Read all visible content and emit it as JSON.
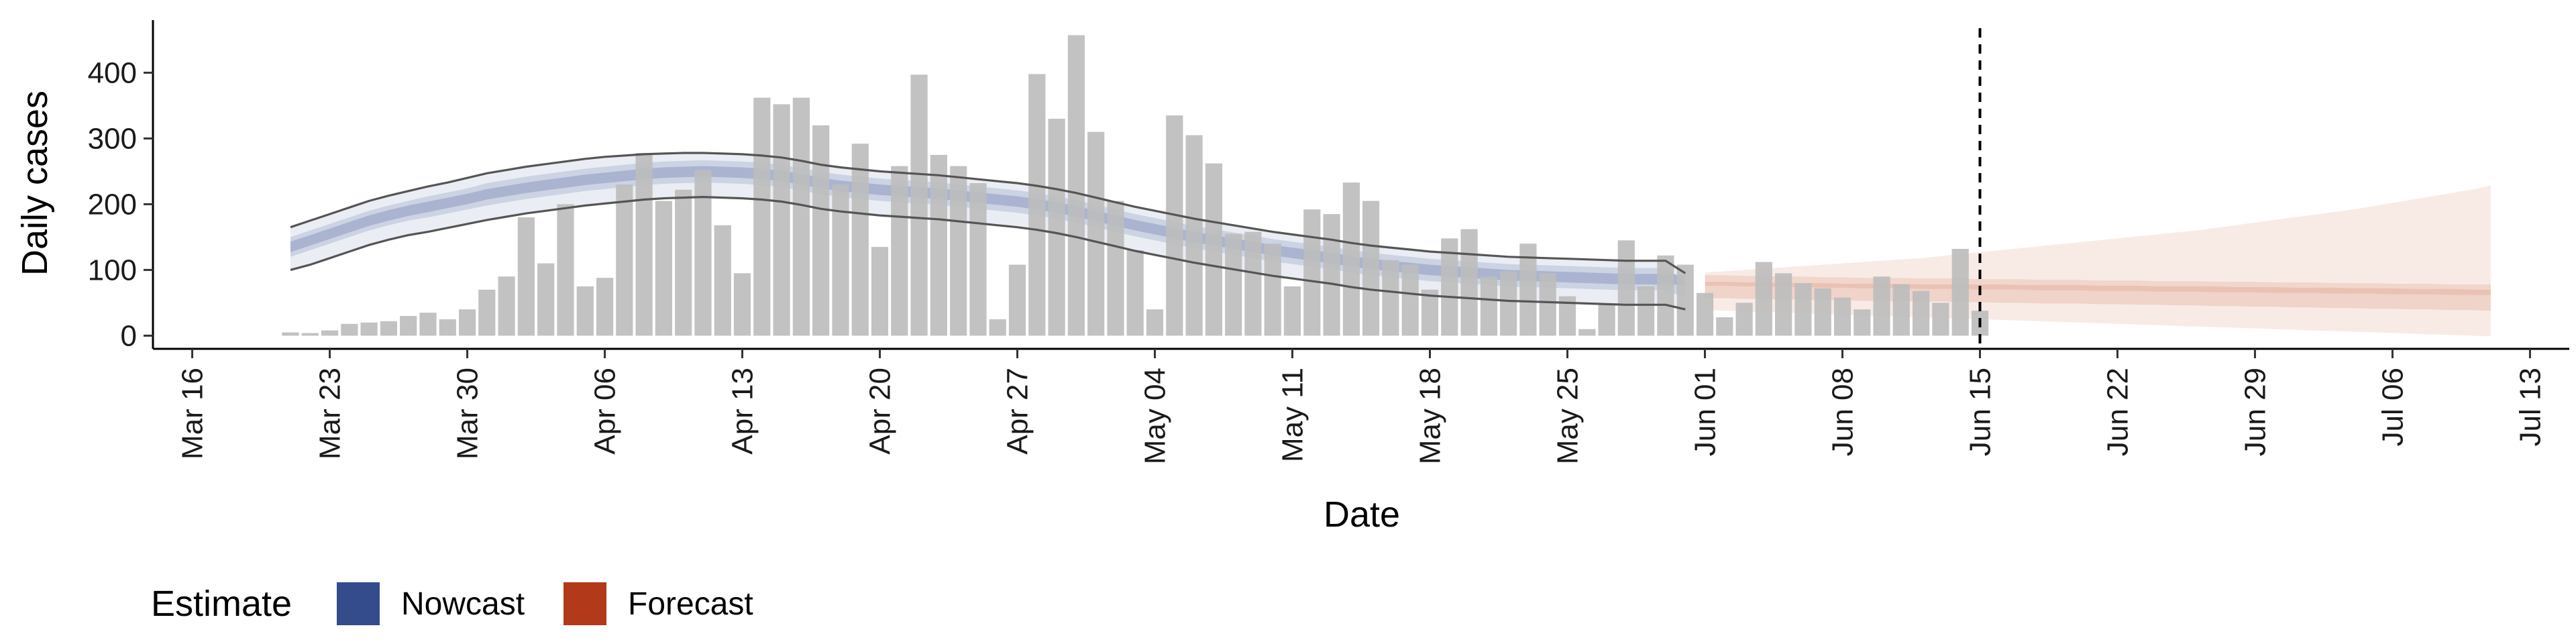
{
  "chart_data": {
    "type": "bar",
    "xlabel": "Date",
    "ylabel": "Daily cases",
    "x_start_date": "2020-03-14",
    "x_end_date": "2020-07-15",
    "ylim": [
      -20,
      480
    ],
    "y_ticks": [
      0,
      100,
      200,
      300,
      400
    ],
    "x_ticks": [
      "Mar 16",
      "Mar 23",
      "Mar 30",
      "Apr 06",
      "Apr 13",
      "Apr 20",
      "Apr 27",
      "May 04",
      "May 11",
      "May 18",
      "May 25",
      "Jun 01",
      "Jun 08",
      "Jun 15",
      "Jun 22",
      "Jun 29",
      "Jul 06",
      "Jul 13"
    ],
    "x_tick_dates": [
      "2020-03-16",
      "2020-03-23",
      "2020-03-30",
      "2020-04-06",
      "2020-04-13",
      "2020-04-20",
      "2020-04-27",
      "2020-05-04",
      "2020-05-11",
      "2020-05-18",
      "2020-05-25",
      "2020-06-01",
      "2020-06-08",
      "2020-06-15",
      "2020-06-22",
      "2020-06-29",
      "2020-07-06",
      "2020-07-13"
    ],
    "vline_date": "2020-06-15",
    "grid": false,
    "legend": {
      "title": "Estimate",
      "position": "bottom-left",
      "items": [
        {
          "label": "Nowcast",
          "color": "#344b8c"
        },
        {
          "label": "Forecast",
          "color": "#b2391a"
        }
      ]
    },
    "colors": {
      "bars": "#bdbdbd",
      "nowcast": "#344b8c",
      "forecast": "#c75a33",
      "band_line": "#555555"
    },
    "cases": {
      "start_date": "2020-03-21",
      "values": [
        5,
        4,
        8,
        18,
        20,
        22,
        30,
        35,
        25,
        40,
        70,
        90,
        180,
        110,
        200,
        75,
        88,
        230,
        278,
        205,
        222,
        252,
        168,
        95,
        362,
        352,
        362,
        320,
        230,
        292,
        135,
        258,
        397,
        275,
        258,
        232,
        25,
        108,
        398,
        330,
        457,
        310,
        205,
        130,
        40,
        335,
        305,
        262,
        155,
        158,
        140,
        75,
        192,
        185,
        233,
        205,
        115,
        108,
        70,
        148,
        162,
        90,
        98,
        140,
        95,
        60,
        10,
        48,
        145,
        75,
        122,
        108,
        65,
        28,
        50,
        112,
        95,
        80,
        72,
        58,
        40,
        90,
        78,
        68,
        50,
        132,
        38
      ]
    },
    "estimate": {
      "start_date": "2020-03-21",
      "nowcast_end_date": "2020-05-31",
      "end_date": "2020-07-11",
      "median": [
        135,
        145,
        155,
        165,
        175,
        183,
        190,
        196,
        202,
        208,
        215,
        220,
        225,
        229,
        233,
        237,
        240,
        243,
        246,
        248,
        249,
        250,
        249,
        248,
        246,
        243,
        238,
        232,
        228,
        225,
        222,
        220,
        218,
        216,
        213,
        210,
        207,
        204,
        200,
        195,
        189,
        182,
        175,
        168,
        162,
        156,
        150,
        145,
        140,
        135,
        130,
        126,
        122,
        118,
        113,
        109,
        106,
        103,
        100,
        98,
        96,
        94,
        92,
        91,
        90,
        89,
        88,
        87,
        86,
        86,
        86,
        85,
        84,
        84,
        83,
        83,
        82,
        82,
        81,
        81,
        80,
        80,
        80,
        79,
        79,
        79,
        78,
        78,
        78,
        77,
        77,
        77,
        76,
        76,
        76,
        75,
        75,
        75,
        74,
        74,
        74,
        73,
        73,
        73,
        72,
        72,
        72,
        71,
        71,
        71,
        70,
        70,
        70
      ],
      "ci50": [
        [
          120,
          150
        ],
        [
          130,
          160
        ],
        [
          140,
          170
        ],
        [
          150,
          180
        ],
        [
          160,
          190
        ],
        [
          168,
          198
        ],
        [
          175,
          205
        ],
        [
          180,
          212
        ],
        [
          186,
          218
        ],
        [
          192,
          224
        ],
        [
          198,
          232
        ],
        [
          203,
          237
        ],
        [
          208,
          242
        ],
        [
          212,
          246
        ],
        [
          216,
          250
        ],
        [
          220,
          254
        ],
        [
          223,
          257
        ],
        [
          226,
          260
        ],
        [
          229,
          263
        ],
        [
          231,
          265
        ],
        [
          232,
          266
        ],
        [
          233,
          267
        ],
        [
          232,
          266
        ],
        [
          231,
          265
        ],
        [
          229,
          263
        ],
        [
          226,
          260
        ],
        [
          221,
          255
        ],
        [
          215,
          249
        ],
        [
          211,
          245
        ],
        [
          208,
          242
        ],
        [
          205,
          239
        ],
        [
          203,
          237
        ],
        [
          201,
          235
        ],
        [
          199,
          233
        ],
        [
          196,
          230
        ],
        [
          193,
          227
        ],
        [
          190,
          224
        ],
        [
          187,
          221
        ],
        [
          183,
          217
        ],
        [
          178,
          212
        ],
        [
          172,
          206
        ],
        [
          165,
          199
        ],
        [
          158,
          192
        ],
        [
          151,
          185
        ],
        [
          145,
          179
        ],
        [
          139,
          173
        ],
        [
          133,
          167
        ],
        [
          128,
          162
        ],
        [
          123,
          157
        ],
        [
          118,
          152
        ],
        [
          113,
          147
        ],
        [
          109,
          143
        ],
        [
          105,
          139
        ],
        [
          101,
          135
        ],
        [
          96,
          130
        ],
        [
          92,
          126
        ],
        [
          89,
          123
        ],
        [
          86,
          120
        ],
        [
          83,
          117
        ],
        [
          81,
          115
        ],
        [
          79,
          113
        ],
        [
          77,
          111
        ],
        [
          75,
          109
        ],
        [
          74,
          108
        ],
        [
          73,
          107
        ],
        [
          72,
          106
        ],
        [
          71,
          105
        ],
        [
          70,
          104
        ],
        [
          69,
          103
        ],
        [
          69,
          103
        ],
        [
          69,
          103
        ],
        [
          58,
          82
        ],
        [
          57,
          82
        ],
        [
          57,
          82
        ],
        [
          56,
          81
        ],
        [
          56,
          81
        ],
        [
          55,
          80
        ],
        [
          55,
          80
        ],
        [
          54,
          80
        ],
        [
          54,
          79
        ],
        [
          53,
          79
        ],
        [
          53,
          79
        ],
        [
          52,
          79
        ],
        [
          52,
          78
        ],
        [
          52,
          78
        ],
        [
          51,
          78
        ],
        [
          51,
          78
        ],
        [
          50,
          78
        ],
        [
          50,
          77
        ],
        [
          49,
          77
        ],
        [
          49,
          77
        ],
        [
          49,
          77
        ],
        [
          48,
          76
        ],
        [
          48,
          76
        ],
        [
          47,
          76
        ],
        [
          47,
          75
        ],
        [
          46,
          75
        ],
        [
          46,
          75
        ],
        [
          45,
          75
        ],
        [
          45,
          74
        ],
        [
          44,
          74
        ],
        [
          44,
          74
        ],
        [
          43,
          73
        ],
        [
          43,
          73
        ],
        [
          42,
          73
        ],
        [
          42,
          72
        ],
        [
          41,
          72
        ],
        [
          41,
          72
        ],
        [
          40,
          71
        ],
        [
          40,
          71
        ],
        [
          39,
          71
        ],
        [
          39,
          70
        ],
        [
          38,
          70
        ]
      ],
      "ci90": [
        [
          100,
          165
        ],
        [
          108,
          175
        ],
        [
          118,
          185
        ],
        [
          128,
          195
        ],
        [
          138,
          205
        ],
        [
          146,
          213
        ],
        [
          153,
          220
        ],
        [
          158,
          227
        ],
        [
          164,
          233
        ],
        [
          170,
          240
        ],
        [
          176,
          247
        ],
        [
          181,
          252
        ],
        [
          186,
          257
        ],
        [
          190,
          261
        ],
        [
          194,
          265
        ],
        [
          198,
          269
        ],
        [
          201,
          272
        ],
        [
          204,
          274
        ],
        [
          207,
          276
        ],
        [
          209,
          277
        ],
        [
          210,
          278
        ],
        [
          211,
          278
        ],
        [
          210,
          277
        ],
        [
          209,
          276
        ],
        [
          207,
          274
        ],
        [
          204,
          271
        ],
        [
          199,
          266
        ],
        [
          193,
          260
        ],
        [
          189,
          256
        ],
        [
          186,
          253
        ],
        [
          183,
          250
        ],
        [
          181,
          248
        ],
        [
          179,
          246
        ],
        [
          177,
          244
        ],
        [
          174,
          241
        ],
        [
          171,
          238
        ],
        [
          168,
          235
        ],
        [
          165,
          232
        ],
        [
          161,
          228
        ],
        [
          156,
          223
        ],
        [
          150,
          217
        ],
        [
          143,
          210
        ],
        [
          136,
          203
        ],
        [
          129,
          196
        ],
        [
          123,
          190
        ],
        [
          117,
          184
        ],
        [
          111,
          178
        ],
        [
          106,
          173
        ],
        [
          101,
          168
        ],
        [
          96,
          163
        ],
        [
          91,
          158
        ],
        [
          87,
          154
        ],
        [
          83,
          150
        ],
        [
          79,
          146
        ],
        [
          74,
          141
        ],
        [
          70,
          137
        ],
        [
          67,
          134
        ],
        [
          64,
          131
        ],
        [
          61,
          128
        ],
        [
          59,
          126
        ],
        [
          57,
          124
        ],
        [
          55,
          122
        ],
        [
          53,
          120
        ],
        [
          52,
          119
        ],
        [
          51,
          118
        ],
        [
          50,
          117
        ],
        [
          49,
          116
        ],
        [
          48,
          115
        ],
        [
          47,
          114
        ],
        [
          47,
          114
        ],
        [
          47,
          114
        ],
        [
          40,
          95
        ],
        [
          39,
          96
        ],
        [
          38,
          98
        ],
        [
          37,
          100
        ],
        [
          36,
          102
        ],
        [
          35,
          104
        ],
        [
          34,
          106
        ],
        [
          33,
          108
        ],
        [
          32,
          110
        ],
        [
          31,
          112
        ],
        [
          30,
          114
        ],
        [
          29,
          116
        ],
        [
          28,
          118
        ],
        [
          27,
          121
        ],
        [
          26,
          124
        ],
        [
          25,
          127
        ],
        [
          24,
          130
        ],
        [
          23,
          133
        ],
        [
          22,
          136
        ],
        [
          21,
          139
        ],
        [
          20,
          142
        ],
        [
          19,
          145
        ],
        [
          18,
          148
        ],
        [
          17,
          151
        ],
        [
          16,
          154
        ],
        [
          15,
          157
        ],
        [
          14,
          160
        ],
        [
          13,
          164
        ],
        [
          12,
          168
        ],
        [
          11,
          172
        ],
        [
          10,
          176
        ],
        [
          9,
          180
        ],
        [
          8,
          184
        ],
        [
          7,
          188
        ],
        [
          6,
          192
        ],
        [
          5,
          197
        ],
        [
          4,
          202
        ],
        [
          3,
          207
        ],
        [
          2,
          212
        ],
        [
          1,
          217
        ],
        [
          0,
          222
        ],
        [
          -1,
          228
        ]
      ]
    }
  }
}
